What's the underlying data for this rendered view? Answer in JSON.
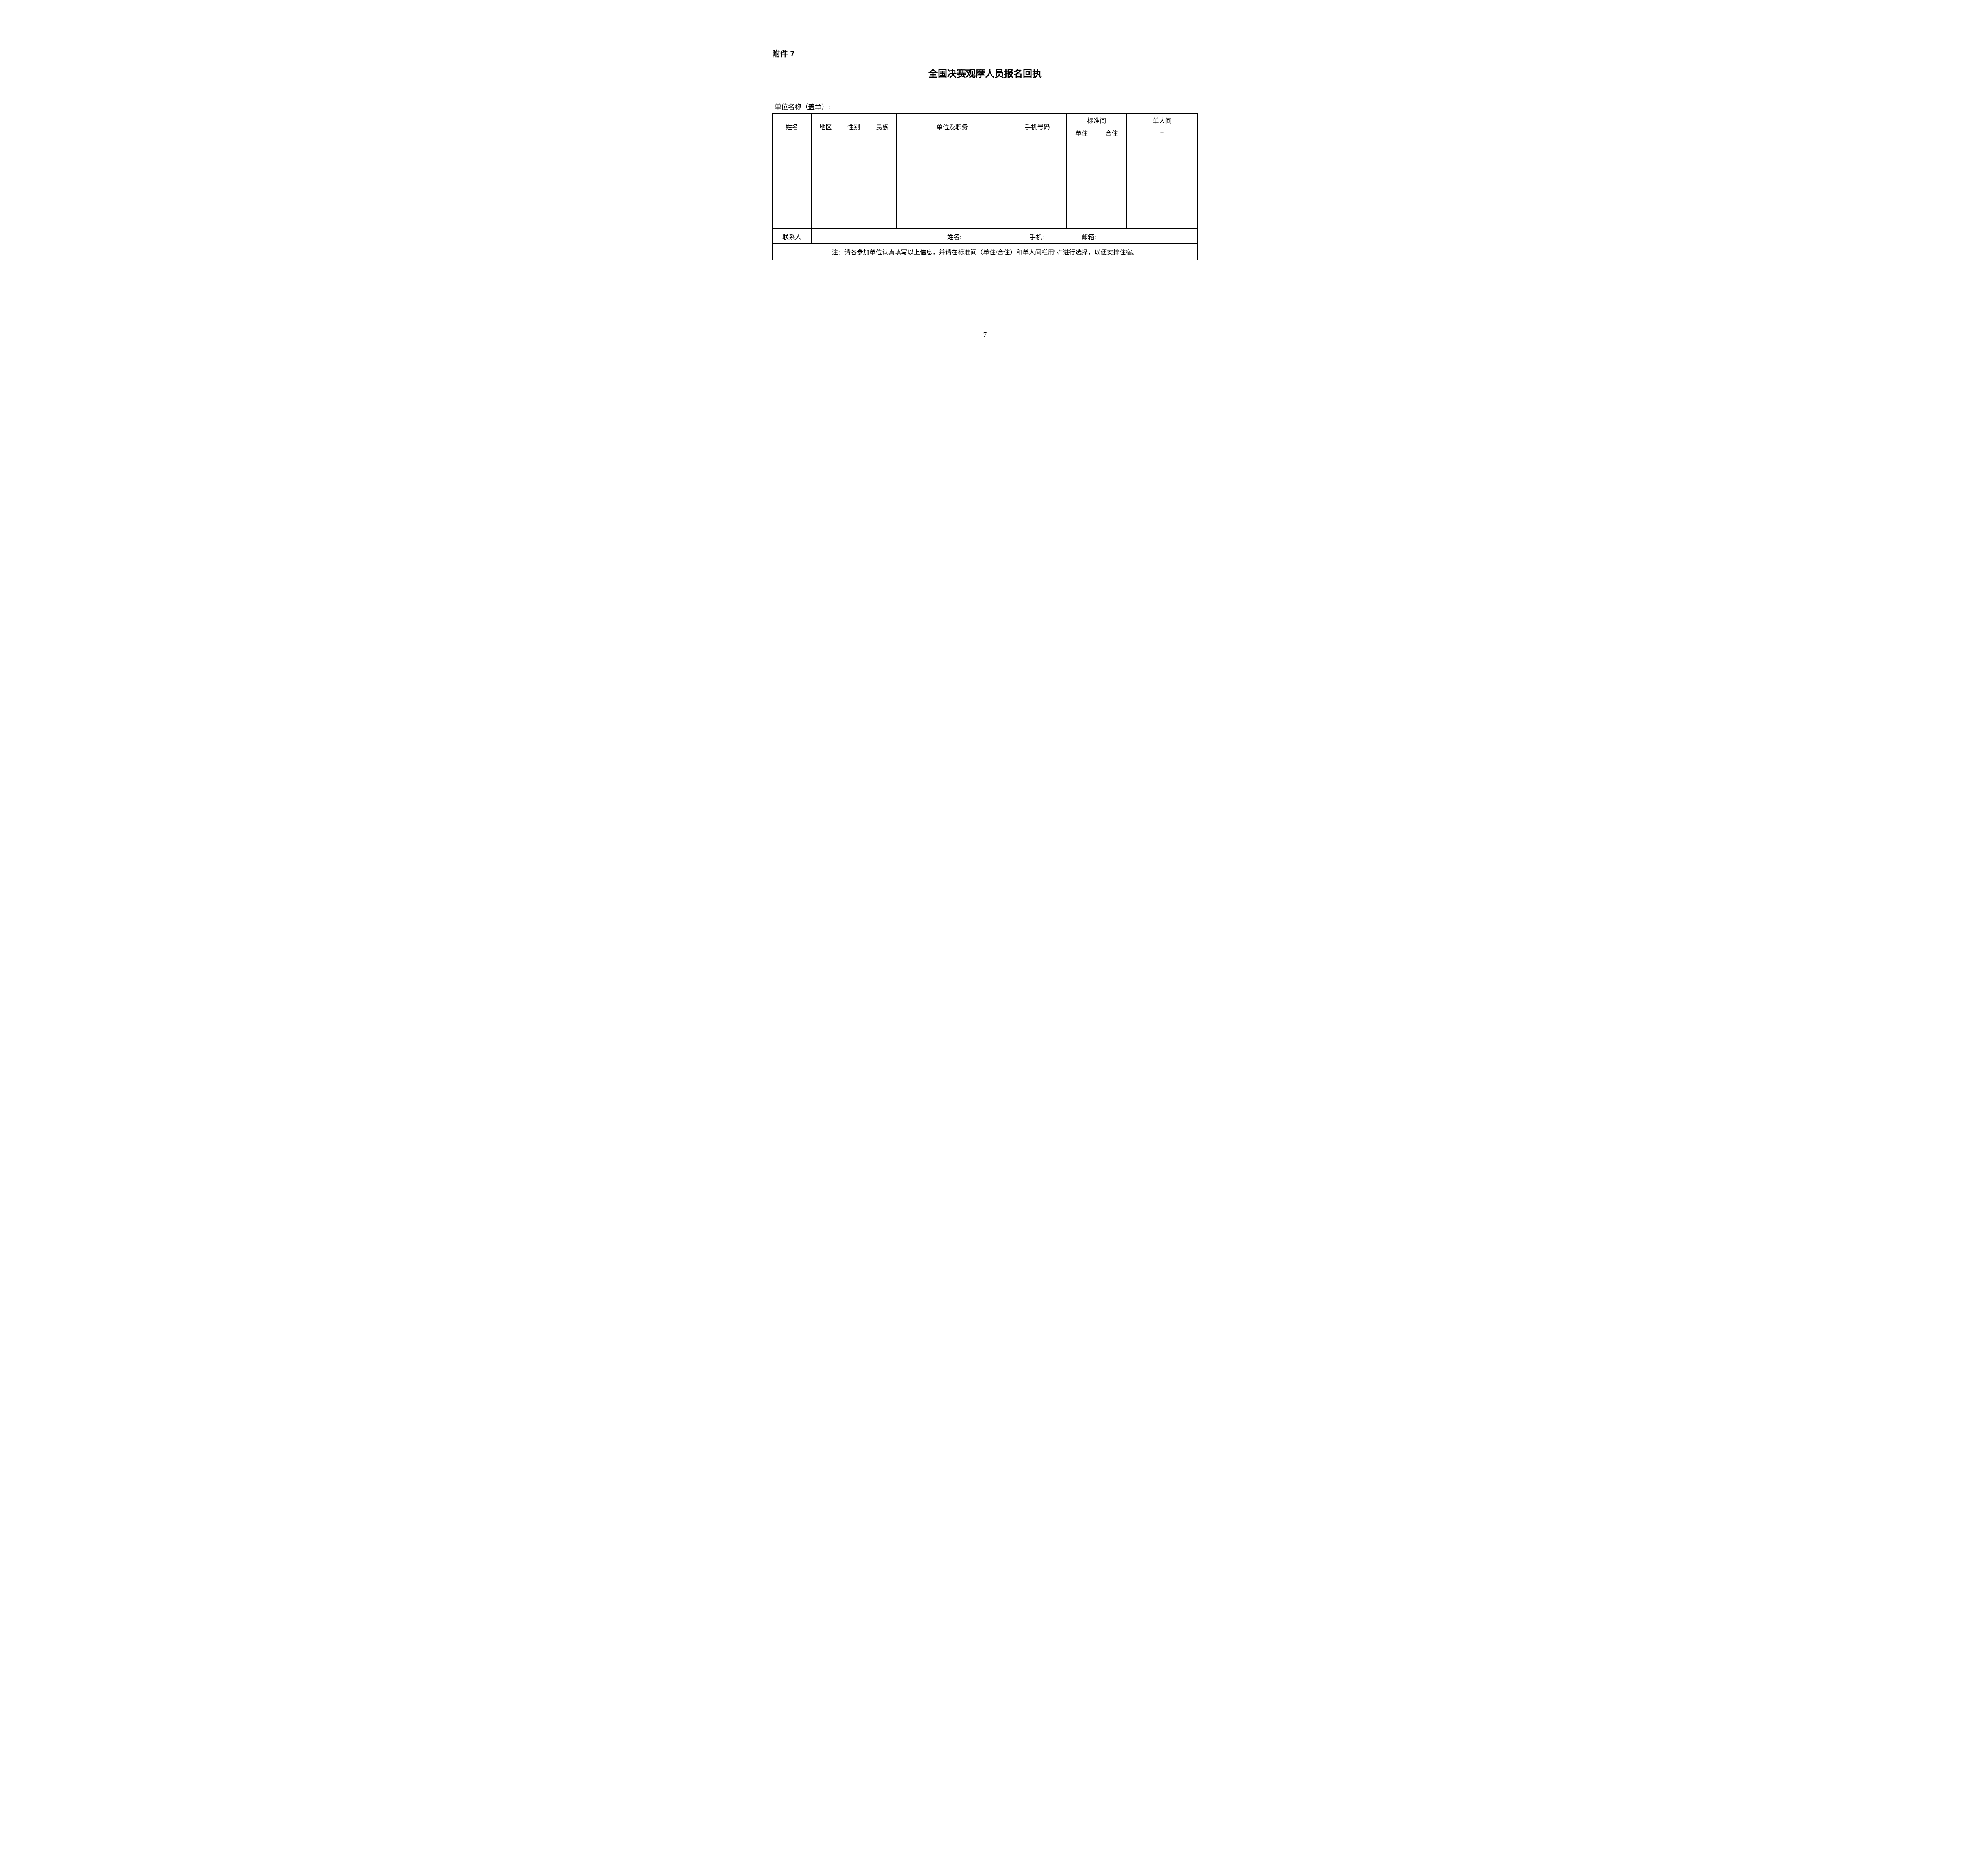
{
  "attachment_label": "附件 7",
  "main_title": "全国决赛观摩人员报名回执",
  "org_name_label": "单位名称（盖章）:",
  "headers": {
    "name": "姓名",
    "region": "地区",
    "gender": "性别",
    "ethnic": "民族",
    "unit_position": "单位及职务",
    "phone": "手机号码",
    "standard_room": "标准间",
    "single_room": "单人间",
    "std_single": "单住",
    "std_shared": "合住",
    "single_sub": "–"
  },
  "data_rows": [
    {
      "name": "",
      "region": "",
      "gender": "",
      "ethnic": "",
      "unit": "",
      "phone": "",
      "std_single": "",
      "std_shared": "",
      "single": ""
    },
    {
      "name": "",
      "region": "",
      "gender": "",
      "ethnic": "",
      "unit": "",
      "phone": "",
      "std_single": "",
      "std_shared": "",
      "single": ""
    },
    {
      "name": "",
      "region": "",
      "gender": "",
      "ethnic": "",
      "unit": "",
      "phone": "",
      "std_single": "",
      "std_shared": "",
      "single": ""
    },
    {
      "name": "",
      "region": "",
      "gender": "",
      "ethnic": "",
      "unit": "",
      "phone": "",
      "std_single": "",
      "std_shared": "",
      "single": ""
    },
    {
      "name": "",
      "region": "",
      "gender": "",
      "ethnic": "",
      "unit": "",
      "phone": "",
      "std_single": "",
      "std_shared": "",
      "single": ""
    },
    {
      "name": "",
      "region": "",
      "gender": "",
      "ethnic": "",
      "unit": "",
      "phone": "",
      "std_single": "",
      "std_shared": "",
      "single": ""
    }
  ],
  "contact": {
    "label": "联系人",
    "name_label": "姓名:",
    "phone_label": "手机:",
    "email_label": "邮箱:"
  },
  "note_text": "注：请各参加单位认真填写以上信息，并请在标准间（单住/合住）和单人间栏用\"√\"进行选择，以便安排住宿。",
  "page_number": "7",
  "colors": {
    "text": "#000000",
    "border": "#000000",
    "background": "#ffffff"
  }
}
